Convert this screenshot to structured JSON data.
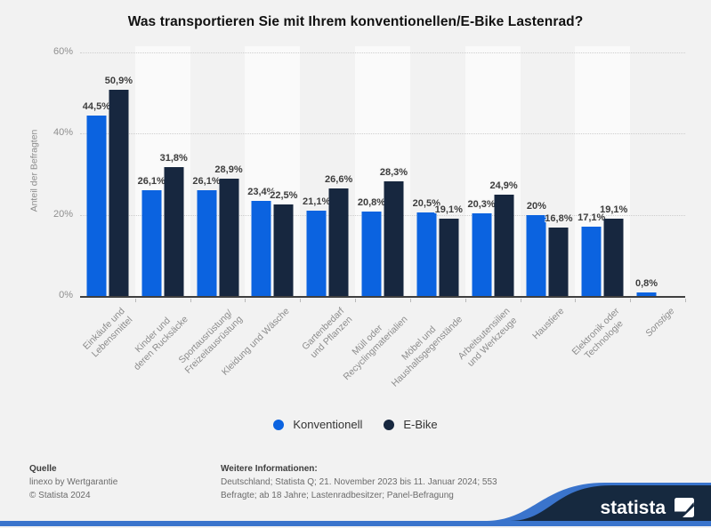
{
  "chart_data": {
    "type": "bar",
    "title": "Was transportieren Sie mit Ihrem konventionellen/E-Bike Lastenrad?",
    "ylabel": "Anteil der Befragten",
    "xlabel": "",
    "ylim": [
      0,
      60
    ],
    "yticks": [
      {
        "value": 0,
        "label": "0%"
      },
      {
        "value": 20,
        "label": "20%"
      },
      {
        "value": 40,
        "label": "40%"
      },
      {
        "value": 60,
        "label": "60%"
      }
    ],
    "grid": "horizontal-dotted",
    "legend_position": "bottom-center",
    "categories": [
      {
        "lines": [
          "Einkäufe und",
          "Lebensmittel"
        ],
        "italic": false
      },
      {
        "lines": [
          "Kinder und",
          "deren Rucksäcke"
        ],
        "italic": false
      },
      {
        "lines": [
          "Sportausrüstung/",
          "Freizeitausrüstung"
        ],
        "italic": false
      },
      {
        "lines": [
          "Kleidung und Wäsche"
        ],
        "italic": false
      },
      {
        "lines": [
          "Gartenbedarf",
          "und Pflanzen"
        ],
        "italic": false
      },
      {
        "lines": [
          "Müll oder",
          "Recyclingmaterialien"
        ],
        "italic": false
      },
      {
        "lines": [
          "Möbel und",
          "Haushaltsgegenstände"
        ],
        "italic": false
      },
      {
        "lines": [
          "Arbeitsutensilien",
          "und Werkzeuge"
        ],
        "italic": false
      },
      {
        "lines": [
          "Haustiere"
        ],
        "italic": false
      },
      {
        "lines": [
          "Elektronik oder",
          "Technologie"
        ],
        "italic": false
      },
      {
        "lines": [
          "Sonstige"
        ],
        "italic": true
      }
    ],
    "series": [
      {
        "name": "Konventionell",
        "color": "#0b63e0",
        "values": [
          44.5,
          26.1,
          26.1,
          23.4,
          21.1,
          20.8,
          20.5,
          20.3,
          20,
          17.1,
          0.8
        ],
        "labels": [
          "44,5%",
          "26,1%",
          "26,1%",
          "23,4%",
          "21,1%",
          "20,8%",
          "20,5%",
          "20,3%",
          "20%",
          "17,1%",
          "0,8%"
        ]
      },
      {
        "name": "E-Bike",
        "color": "#17273f",
        "values": [
          50.9,
          31.8,
          28.9,
          22.5,
          26.6,
          28.3,
          19.1,
          24.9,
          16.8,
          19.1,
          null
        ],
        "labels": [
          "50,9%",
          "31,8%",
          "28,9%",
          "22,5%",
          "26,6%",
          "28,3%",
          "19,1%",
          "24,9%",
          "16,8%",
          "19,1%",
          null
        ]
      }
    ]
  },
  "footer": {
    "source_heading": "Quelle",
    "source_lines": [
      "linexo by Wertgarantie",
      "© Statista 2024"
    ],
    "info_heading": "Weitere Informationen:",
    "info_lines": [
      "Deutschland; Statista Q; 21. November 2023 bis 11. Januar 2024; 553",
      "Befragte; ab 18 Jahre; Lastenradbesitzer; Panel-Befragung"
    ],
    "brand": "statista",
    "colors": {
      "navy": "#16293f",
      "blue": "#3a74cc"
    }
  }
}
